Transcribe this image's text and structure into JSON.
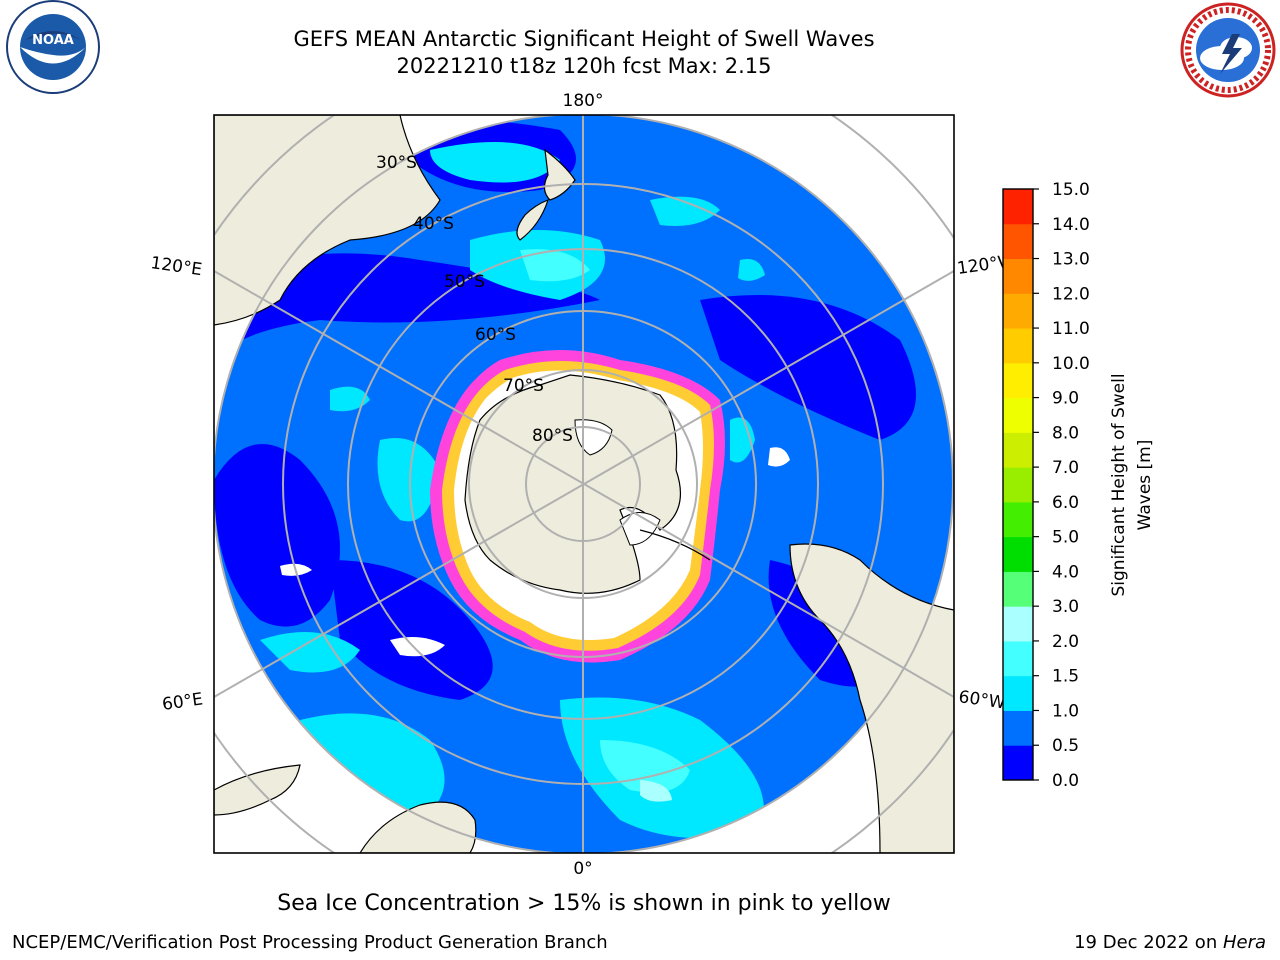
{
  "header": {
    "title_line1": "GEFS MEAN Antarctic Significant Height of Swell Waves",
    "title_line2": "20221210 t18z 120h fcst   Max: 2.15"
  },
  "logos": {
    "left": "noaa-logo",
    "right": "national-weather-service-logo",
    "left_text": "NATIONAL OCEANIC AND ATMOSPHERIC ADMINISTRATION · U.S. DEPARTMENT OF COMMERCE",
    "left_mark": "NOAA",
    "right_text": "NATIONAL WEATHER SERVICE"
  },
  "map": {
    "projection": "south-polar-stereographic",
    "meridian_labels": {
      "top": "180°",
      "upper_left": "120°E",
      "upper_right": "120°W",
      "lower_left": "60°E",
      "lower_right": "60°W",
      "bottom": "0°"
    },
    "latitude_labels": [
      "30°S",
      "40°S",
      "50°S",
      "60°S",
      "70°S",
      "80°S"
    ],
    "colors": {
      "land": "#eeecdc",
      "sea_ice": "#ffffff",
      "ice_edge_pink": "#ff44dd",
      "ice_edge_yellow": "#ffcc33",
      "grid": "#b0b0b0"
    }
  },
  "colorbar": {
    "label": "Significant Height of Swell Waves [m]",
    "ticks": [
      "0.0",
      "0.5",
      "1.0",
      "1.5",
      "2.0",
      "3.0",
      "4.0",
      "5.0",
      "6.0",
      "7.0",
      "8.0",
      "9.0",
      "10.0",
      "11.0",
      "12.0",
      "13.0",
      "14.0",
      "15.0"
    ],
    "colors": [
      "#0000ff",
      "#0070ff",
      "#00e8ff",
      "#44ffff",
      "#aaffff",
      "#55ff77",
      "#00dd00",
      "#44ee00",
      "#99ee00",
      "#ccee00",
      "#eeff00",
      "#ffee00",
      "#ffcc00",
      "#ffaa00",
      "#ff8800",
      "#ff5500",
      "#ff2200"
    ]
  },
  "subtitle": "Sea Ice Concentration > 15% is shown in pink to yellow",
  "footer": {
    "left": "NCEP/EMC/Verification Post Processing Product Generation Branch",
    "right_prefix": "19 Dec 2022 on ",
    "right_host": "Hera"
  }
}
